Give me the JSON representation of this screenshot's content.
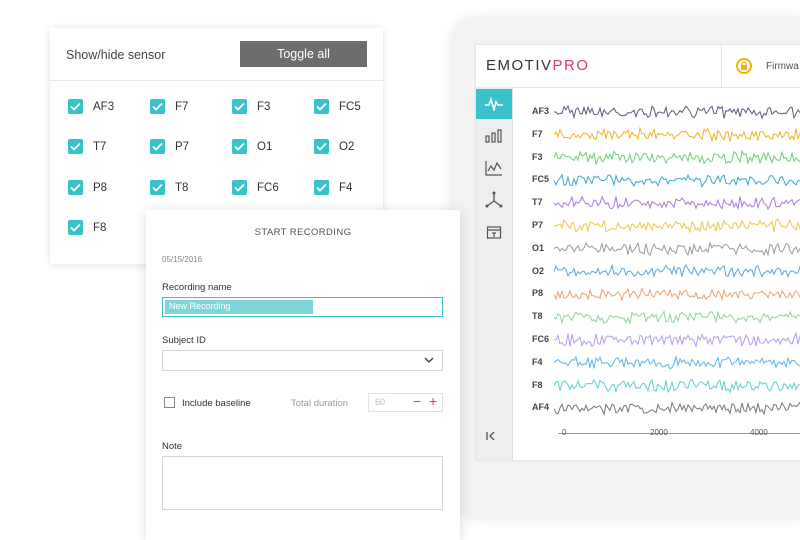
{
  "sensor_panel": {
    "title": "Show/hide sensor",
    "toggle_label": "Toggle all",
    "sensors": [
      "AF3",
      "F7",
      "F3",
      "FC5",
      "T7",
      "P7",
      "O1",
      "O2",
      "P8",
      "T8",
      "FC6",
      "F4",
      "F8"
    ]
  },
  "app": {
    "logo_main": "EMOTIV",
    "logo_accent": "PRO",
    "firmware_label": "Firmwa",
    "channels": [
      {
        "name": "AF3",
        "color": "#5b5b7a"
      },
      {
        "name": "F7",
        "color": "#f2b320"
      },
      {
        "name": "F3",
        "color": "#6ccf79"
      },
      {
        "name": "FC5",
        "color": "#3aa7d6"
      },
      {
        "name": "T7",
        "color": "#a87be0"
      },
      {
        "name": "P7",
        "color": "#f0c64a"
      },
      {
        "name": "O1",
        "color": "#9a9a9a"
      },
      {
        "name": "O2",
        "color": "#5aa6e6"
      },
      {
        "name": "P8",
        "color": "#f0a070"
      },
      {
        "name": "T8",
        "color": "#8fd49a"
      },
      {
        "name": "FC6",
        "color": "#b89cf0"
      },
      {
        "name": "F4",
        "color": "#5ab7e8"
      },
      {
        "name": "F8",
        "color": "#5fd0cc"
      },
      {
        "name": "AF4",
        "color": "#777777"
      }
    ],
    "axis_ticks": [
      "0",
      "2000",
      "4000"
    ],
    "accent_color": "#39c2c8"
  },
  "recording": {
    "title": "START RECORDING",
    "date": "05/15/2016",
    "name_label": "Recording name",
    "name_value": "New Recording",
    "subject_label": "Subject ID",
    "baseline_label": "Include baseline",
    "duration_label": "Total duration",
    "duration_value": "60",
    "note_label": "Note"
  }
}
